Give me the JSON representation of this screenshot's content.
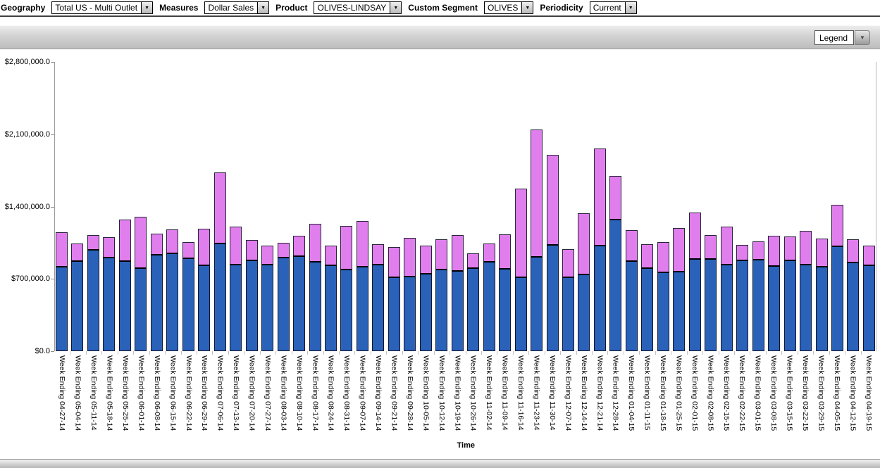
{
  "toolbar": {
    "fields": [
      {
        "label": "Geography",
        "value": "Total US - Multi Outlet"
      },
      {
        "label": "Measures",
        "value": "Dollar Sales"
      },
      {
        "label": "Product",
        "value": "OLIVES-LINDSAY"
      },
      {
        "label": "Custom Segment",
        "value": "OLIVES"
      },
      {
        "label": "Periodicity",
        "value": "Current"
      }
    ],
    "dropdown_arrow_glyph": "▼"
  },
  "panel_header": {
    "legend_label": "Legend",
    "legend_arrow_glyph": "▼"
  },
  "chart_data": {
    "type": "bar",
    "stacked": true,
    "title": "",
    "xlabel": "Time",
    "ylabel": "",
    "ylim": [
      0,
      2800000
    ],
    "grid": false,
    "legend_position": "collapsed-dropdown-top-right",
    "y_tick_values": [
      0,
      700000,
      1400000,
      2100000,
      2800000
    ],
    "y_tick_labels": [
      "$0.0",
      "$700,000.0",
      "$1,400,000.0",
      "$2,100,000.0",
      "$2,800,000.0"
    ],
    "x_label_prefix": "Week Ending ",
    "categories": [
      "04-27-14",
      "05-04-14",
      "05-11-14",
      "05-18-14",
      "05-25-14",
      "06-01-14",
      "06-08-14",
      "06-15-14",
      "06-22-14",
      "06-29-14",
      "07-06-14",
      "07-13-14",
      "07-20-14",
      "07-27-14",
      "08-03-14",
      "08-10-14",
      "08-17-14",
      "08-24-14",
      "08-31-14",
      "09-07-14",
      "09-14-14",
      "09-21-14",
      "09-28-14",
      "10-05-14",
      "10-12-14",
      "10-19-14",
      "10-26-14",
      "11-02-14",
      "11-09-14",
      "11-16-14",
      "11-23-14",
      "11-30-14",
      "12-07-14",
      "12-14-14",
      "12-21-14",
      "12-28-14",
      "01-04-15",
      "01-11-15",
      "01-18-15",
      "01-25-15",
      "02-01-15",
      "02-08-15",
      "02-15-15",
      "02-22-15",
      "03-01-15",
      "03-08-15",
      "03-15-15",
      "03-22-15",
      "03-29-15",
      "04-05-15",
      "04-12-15",
      "04-19-15"
    ],
    "series": [
      {
        "name": "series-1-blue-bottom",
        "color": "#2a62ba",
        "values": [
          815000,
          870000,
          980000,
          905000,
          870000,
          805000,
          930000,
          950000,
          900000,
          830000,
          1045000,
          840000,
          880000,
          840000,
          905000,
          920000,
          865000,
          830000,
          790000,
          815000,
          835000,
          715000,
          725000,
          750000,
          790000,
          775000,
          805000,
          865000,
          800000,
          715000,
          915000,
          1030000,
          715000,
          745000,
          1025000,
          1275000,
          870000,
          805000,
          760000,
          770000,
          895000,
          890000,
          835000,
          880000,
          885000,
          825000,
          880000,
          835000,
          820000,
          1015000,
          860000,
          830000
        ]
      },
      {
        "name": "series-2-pink-top",
        "color": "#e07eee",
        "values": [
          335000,
          170000,
          145000,
          195000,
          400000,
          495000,
          205000,
          235000,
          160000,
          355000,
          685000,
          365000,
          200000,
          185000,
          145000,
          195000,
          365000,
          190000,
          420000,
          445000,
          200000,
          295000,
          375000,
          270000,
          290000,
          345000,
          140000,
          175000,
          335000,
          855000,
          1235000,
          870000,
          270000,
          590000,
          940000,
          420000,
          300000,
          235000,
          290000,
          420000,
          450000,
          235000,
          365000,
          150000,
          175000,
          290000,
          235000,
          325000,
          270000,
          400000,
          225000,
          190000
        ]
      }
    ]
  },
  "colors": {
    "bar_blue": "#2a62ba",
    "bar_pink": "#e07eee",
    "bar_border": "#1a1a1a",
    "axis_line": "#9b9b9b",
    "toolbar_divider": "#404040"
  }
}
